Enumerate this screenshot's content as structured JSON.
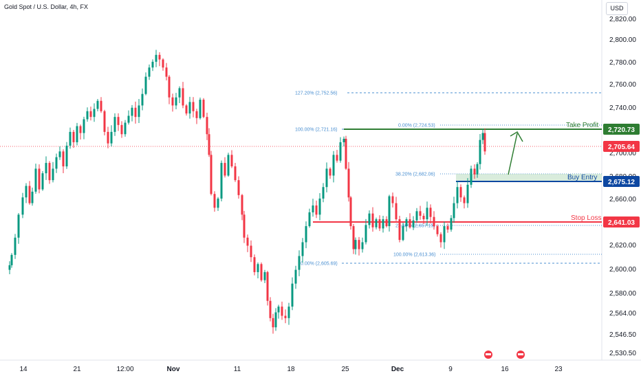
{
  "header": {
    "title": "Gold Spot / U.S. Dollar, 4h, FX",
    "currency": "USD"
  },
  "colors": {
    "up": "#089981",
    "down": "#f23645",
    "green": "#2e7d32",
    "blue": "#0d47a1",
    "red": "#f23645",
    "fib": "#4a8fd1"
  },
  "chart_data": {
    "type": "candlestick",
    "title": "Gold Spot / U.S. Dollar, 4h, FX",
    "y_axis": {
      "range": [
        2522,
        2826
      ],
      "ticks": [
        "2,820.00",
        "2,800.00",
        "2,780.00",
        "2,760.00",
        "2,740.00",
        "2,720.00",
        "2,700.00",
        "2,680.00",
        "2,660.00",
        "2,640.00",
        "2,620.00",
        "2,600.00",
        "2,580.00",
        "2,564.00",
        "2,546.50",
        "2,530.50"
      ]
    },
    "x_axis": {
      "ticks": [
        "14",
        "21",
        "12:00",
        "Nov",
        "11",
        "18",
        "25",
        "Dec",
        "9",
        "16",
        "23"
      ],
      "bold_ticks": [
        "Nov",
        "Dec"
      ]
    },
    "price_path": [
      [
        14,
        2606
      ],
      [
        17,
        2615
      ],
      [
        22,
        2630
      ],
      [
        27,
        2650
      ],
      [
        33,
        2665
      ],
      [
        38,
        2675
      ],
      [
        43,
        2660
      ],
      [
        47,
        2670
      ],
      [
        52,
        2690
      ],
      [
        57,
        2672
      ],
      [
        62,
        2686
      ],
      [
        67,
        2695
      ],
      [
        72,
        2680
      ],
      [
        77,
        2690
      ],
      [
        82,
        2700
      ],
      [
        87,
        2705
      ],
      [
        92,
        2692
      ],
      [
        97,
        2710
      ],
      [
        102,
        2722
      ],
      [
        107,
        2713
      ],
      [
        112,
        2727
      ],
      [
        117,
        2721
      ],
      [
        122,
        2733
      ],
      [
        127,
        2740
      ],
      [
        132,
        2735
      ],
      [
        137,
        2742
      ],
      [
        142,
        2749
      ],
      [
        147,
        2740
      ],
      [
        152,
        2722
      ],
      [
        157,
        2712
      ],
      [
        162,
        2722
      ],
      [
        167,
        2735
      ],
      [
        172,
        2728
      ],
      [
        177,
        2720
      ],
      [
        182,
        2730
      ],
      [
        187,
        2736
      ],
      [
        192,
        2743
      ],
      [
        197,
        2735
      ],
      [
        202,
        2745
      ],
      [
        207,
        2755
      ],
      [
        212,
        2770
      ],
      [
        217,
        2778
      ],
      [
        222,
        2783
      ],
      [
        227,
        2789
      ],
      [
        232,
        2785
      ],
      [
        237,
        2778
      ],
      [
        242,
        2770
      ],
      [
        246,
        2752
      ],
      [
        251,
        2745
      ],
      [
        256,
        2752
      ],
      [
        261,
        2760
      ],
      [
        266,
        2745
      ],
      [
        271,
        2738
      ],
      [
        276,
        2748
      ],
      [
        281,
        2740
      ],
      [
        286,
        2734
      ],
      [
        291,
        2750
      ],
      [
        296,
        2735
      ],
      [
        301,
        2720
      ],
      [
        304,
        2702
      ],
      [
        307,
        2668
      ],
      [
        312,
        2656
      ],
      [
        317,
        2664
      ],
      [
        322,
        2695
      ],
      [
        327,
        2684
      ],
      [
        332,
        2702
      ],
      [
        337,
        2692
      ],
      [
        342,
        2680
      ],
      [
        347,
        2667
      ],
      [
        352,
        2650
      ],
      [
        355,
        2630
      ],
      [
        360,
        2623
      ],
      [
        365,
        2613
      ],
      [
        370,
        2600
      ],
      [
        375,
        2607
      ],
      [
        380,
        2593
      ],
      [
        385,
        2600
      ],
      [
        389,
        2575
      ],
      [
        393,
        2560
      ],
      [
        397,
        2552
      ],
      [
        401,
        2565
      ],
      [
        405,
        2570
      ],
      [
        410,
        2562
      ],
      [
        415,
        2560
      ],
      [
        420,
        2570
      ],
      [
        425,
        2590
      ],
      [
        430,
        2602
      ],
      [
        435,
        2614
      ],
      [
        440,
        2626
      ],
      [
        445,
        2640
      ],
      [
        450,
        2652
      ],
      [
        455,
        2658
      ],
      [
        460,
        2650
      ],
      [
        465,
        2664
      ],
      [
        470,
        2674
      ],
      [
        475,
        2690
      ],
      [
        480,
        2684
      ],
      [
        485,
        2702
      ],
      [
        490,
        2697
      ],
      [
        495,
        2713
      ],
      [
        500,
        2716
      ],
      [
        503,
        2690
      ],
      [
        507,
        2665
      ],
      [
        510,
        2640
      ],
      [
        514,
        2620
      ],
      [
        517,
        2628
      ],
      [
        522,
        2620
      ],
      [
        527,
        2626
      ],
      [
        532,
        2641
      ],
      [
        537,
        2651
      ],
      [
        542,
        2639
      ],
      [
        547,
        2646
      ],
      [
        552,
        2638
      ],
      [
        557,
        2646
      ],
      [
        562,
        2640
      ],
      [
        566,
        2666
      ],
      [
        571,
        2660
      ],
      [
        576,
        2646
      ],
      [
        581,
        2628
      ],
      [
        586,
        2640
      ],
      [
        591,
        2646
      ],
      [
        596,
        2639
      ],
      [
        601,
        2645
      ],
      [
        606,
        2653
      ],
      [
        611,
        2649
      ],
      [
        616,
        2646
      ],
      [
        621,
        2656
      ],
      [
        626,
        2648
      ],
      [
        631,
        2640
      ],
      [
        636,
        2633
      ],
      [
        641,
        2626
      ],
      [
        646,
        2640
      ],
      [
        651,
        2637
      ],
      [
        656,
        2647
      ],
      [
        660,
        2660
      ],
      [
        665,
        2674
      ],
      [
        670,
        2665
      ],
      [
        675,
        2660
      ],
      [
        680,
        2676
      ],
      [
        685,
        2690
      ],
      [
        690,
        2685
      ],
      [
        694,
        2694
      ],
      [
        698,
        2715
      ],
      [
        702,
        2721
      ],
      [
        705,
        2705
      ]
    ],
    "last_price": "2,705.64",
    "take_profit": {
      "label": "Take Profit",
      "value": 2720.73,
      "value_label": "2,720.73"
    },
    "buy_entry": {
      "label": "Buy Entry",
      "value": 2675.12,
      "value_label": "2,675.12"
    },
    "stop_loss": {
      "label": "Stop Loss",
      "value": 2641.03,
      "value_label": "2,641.03"
    },
    "fibonacci": [
      {
        "label": "127.20% (2,752.56)",
        "price": 2752.56
      },
      {
        "label": "100.00% (2,721.16)",
        "price": 2721.16
      },
      {
        "label": "0.00% (2,724.53)",
        "price": 2724.53
      },
      {
        "label": "38.20% (2,682.06)",
        "price": 2682.06
      },
      {
        "label": "23.60% (2,657.15)",
        "price": 2657.15
      },
      {
        "label": "100.00% (2,613.36)",
        "price": 2613.36
      },
      {
        "label": "0.00% (2,605.69)",
        "price": 2605.69
      }
    ],
    "projection": {
      "from": 2682,
      "to": 2718
    },
    "events": [
      "US economic event",
      "US economic event"
    ]
  }
}
